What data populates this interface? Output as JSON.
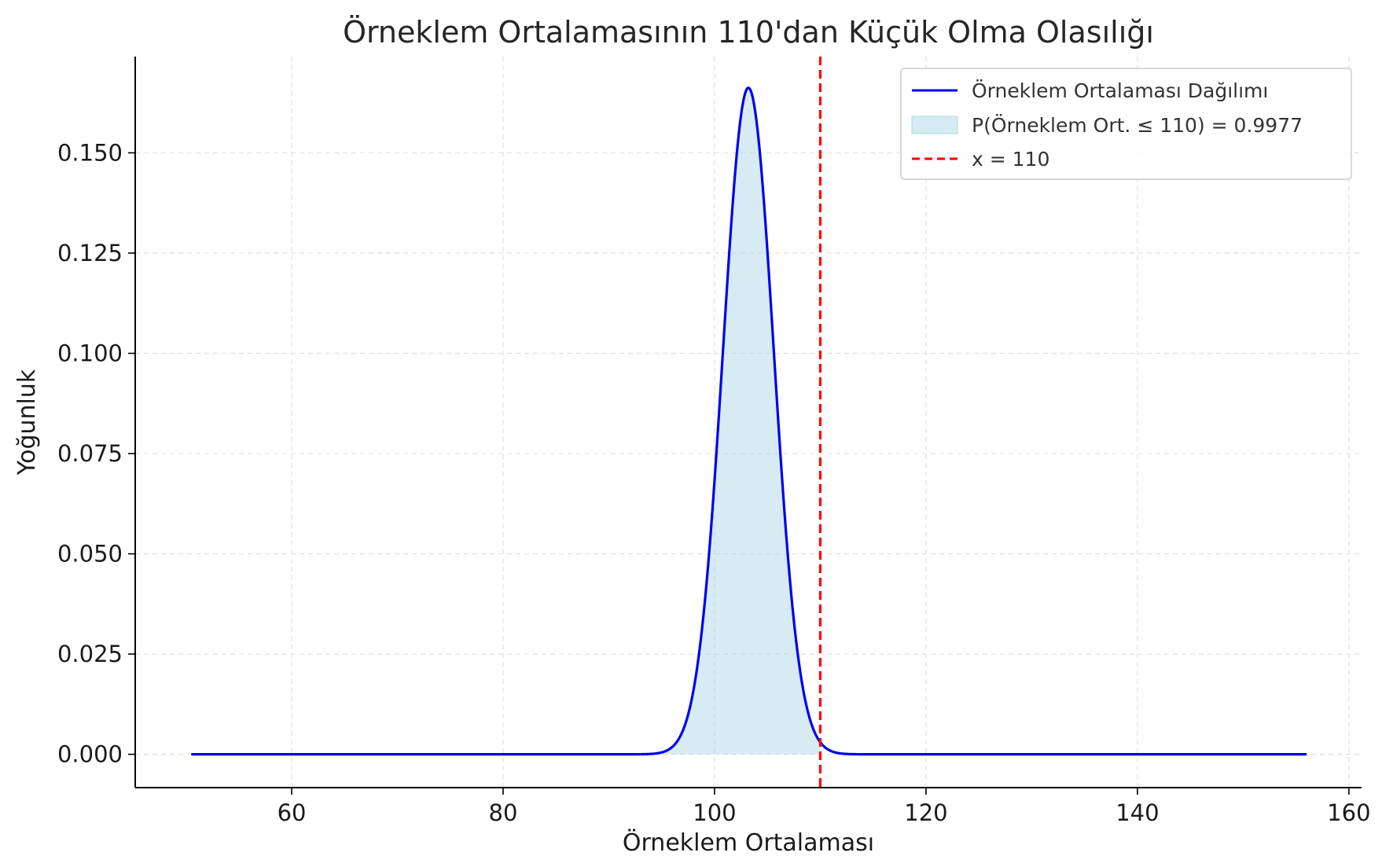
{
  "chart_data": {
    "type": "line",
    "title": "Örneklem Ortalamasının 110'dan Küçük Olma Olasılığı",
    "xlabel": "Örneklem Ortalaması",
    "ylabel": "Yoğunluk",
    "xlim": [
      45.2,
      161.2
    ],
    "ylim": [
      -0.0083,
      0.174
    ],
    "xticks": [
      60,
      80,
      100,
      120,
      140,
      160
    ],
    "yticks": [
      0.0,
      0.025,
      0.05,
      0.075,
      0.1,
      0.125,
      0.15
    ],
    "xtick_labels": [
      "60",
      "80",
      "100",
      "120",
      "140",
      "160"
    ],
    "ytick_labels": [
      "0.000",
      "0.025",
      "0.050",
      "0.075",
      "0.100",
      "0.125",
      "0.150"
    ],
    "grid": true,
    "legend_position": "top-right",
    "series": [
      {
        "name": "Örneklem Ortalaması Dağılımı",
        "kind": "line",
        "color": "#0000ee",
        "distribution": "normal",
        "mean": 103.2,
        "sd": 2.4,
        "x_range": [
          50.5,
          156
        ]
      },
      {
        "name": "P(Örneklem Ort. ≤ 110) = 0.9977",
        "kind": "area",
        "color": "#add8e6",
        "opacity": 0.5,
        "x_range": [
          50.5,
          110
        ]
      },
      {
        "name": "x = 110",
        "kind": "vline",
        "color": "#ff0000",
        "x": 110,
        "style": "dashed"
      }
    ]
  }
}
